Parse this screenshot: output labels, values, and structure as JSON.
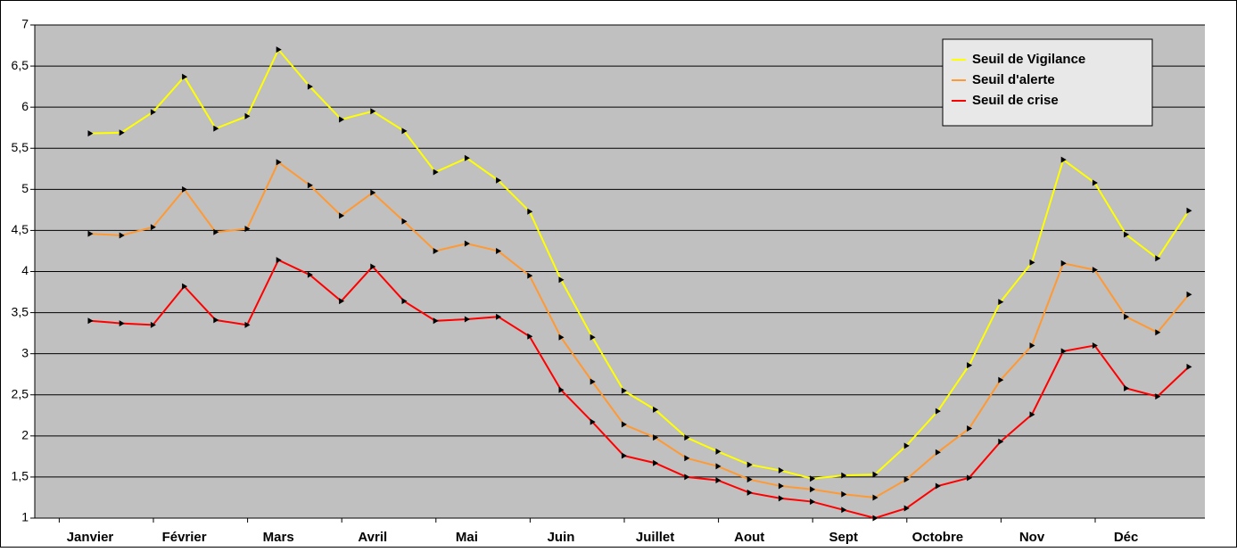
{
  "chart_data": {
    "type": "line",
    "categories": [
      "Janvier",
      null,
      null,
      "Février",
      null,
      null,
      "Mars",
      null,
      null,
      "Avril",
      null,
      null,
      "Mai",
      null,
      null,
      "Juin",
      null,
      null,
      "Juillet",
      null,
      null,
      "Aout",
      null,
      null,
      "Sept",
      null,
      null,
      "Octobre",
      null,
      null,
      "Nov",
      null,
      null,
      "Déc",
      null,
      null
    ],
    "series": [
      {
        "name": "Seuil de Vigilance",
        "color": "#ffff00",
        "values": [
          5.68,
          5.69,
          5.94,
          6.37,
          5.74,
          5.89,
          6.7,
          6.25,
          5.85,
          5.95,
          5.71,
          5.21,
          5.38,
          5.11,
          4.73,
          3.9,
          3.2,
          2.55,
          2.32,
          1.98,
          1.81,
          1.65,
          1.58,
          1.48,
          1.52,
          1.53,
          1.88,
          2.3,
          2.86,
          3.63,
          4.11,
          5.36,
          5.08,
          4.45,
          4.16,
          4.74
        ]
      },
      {
        "name": "Seuil d'alerte",
        "color": "#ff9933",
        "values": [
          4.46,
          4.44,
          4.54,
          5.0,
          4.48,
          4.52,
          5.33,
          5.05,
          4.68,
          4.96,
          4.61,
          4.25,
          4.34,
          4.25,
          3.95,
          3.2,
          2.66,
          2.14,
          1.98,
          1.73,
          1.63,
          1.47,
          1.39,
          1.35,
          1.29,
          1.25,
          1.47,
          1.8,
          2.09,
          2.68,
          3.1,
          4.1,
          4.02,
          3.45,
          3.26,
          3.72
        ]
      },
      {
        "name": "Seuil de crise",
        "color": "#ff0000",
        "values": [
          3.4,
          3.37,
          3.35,
          3.82,
          3.41,
          3.35,
          4.14,
          3.96,
          3.64,
          4.06,
          3.64,
          3.4,
          3.42,
          3.45,
          3.21,
          2.56,
          2.17,
          1.76,
          1.67,
          1.5,
          1.46,
          1.31,
          1.24,
          1.2,
          1.1,
          1.0,
          1.12,
          1.39,
          1.49,
          1.93,
          2.26,
          3.03,
          3.1,
          2.58,
          2.48,
          2.84
        ]
      }
    ],
    "ylim": [
      1,
      7
    ],
    "yticks": [
      1,
      {
        "value": 1.5,
        "label": "1,5"
      },
      2,
      {
        "value": 2.5,
        "label": "2,5"
      },
      3,
      {
        "value": 3.5,
        "label": "3,5"
      },
      4,
      {
        "value": 4.5,
        "label": "4,5"
      },
      5,
      {
        "value": 5.5,
        "label": "5,5"
      },
      6,
      {
        "value": 6.5,
        "label": "6,5"
      },
      7
    ],
    "grid": true,
    "legend": "top-right",
    "plot_background": "#c0c0c0"
  }
}
